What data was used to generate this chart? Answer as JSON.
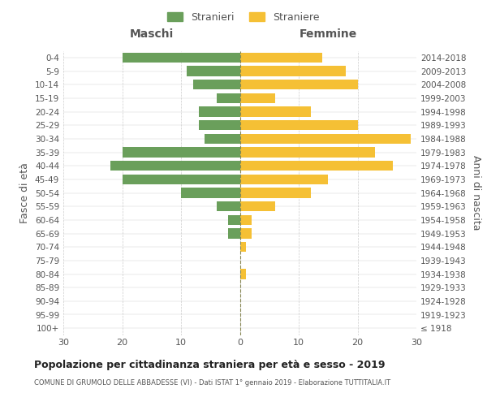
{
  "age_groups": [
    "100+",
    "95-99",
    "90-94",
    "85-89",
    "80-84",
    "75-79",
    "70-74",
    "65-69",
    "60-64",
    "55-59",
    "50-54",
    "45-49",
    "40-44",
    "35-39",
    "30-34",
    "25-29",
    "20-24",
    "15-19",
    "10-14",
    "5-9",
    "0-4"
  ],
  "birth_years": [
    "≤ 1918",
    "1919-1923",
    "1924-1928",
    "1929-1933",
    "1934-1938",
    "1939-1943",
    "1944-1948",
    "1949-1953",
    "1954-1958",
    "1959-1963",
    "1964-1968",
    "1969-1973",
    "1974-1978",
    "1979-1983",
    "1984-1988",
    "1989-1993",
    "1994-1998",
    "1999-2003",
    "2004-2008",
    "2009-2013",
    "2014-2018"
  ],
  "males": [
    0,
    0,
    0,
    0,
    0,
    0,
    0,
    2,
    2,
    4,
    10,
    20,
    22,
    20,
    6,
    7,
    7,
    4,
    8,
    9,
    20
  ],
  "females": [
    0,
    0,
    0,
    0,
    1,
    0,
    1,
    2,
    2,
    6,
    12,
    15,
    26,
    23,
    29,
    20,
    12,
    6,
    20,
    18,
    14
  ],
  "male_color": "#6a9f5b",
  "female_color": "#f5c035",
  "title": "Popolazione per cittadinanza straniera per età e sesso - 2019",
  "subtitle": "COMUNE DI GRUMOLO DELLE ABBADESSE (VI) - Dati ISTAT 1° gennaio 2019 - Elaborazione TUTTITALIA.IT",
  "left_header": "Maschi",
  "right_header": "Femmine",
  "left_ylabel": "Fasce di età",
  "right_ylabel": "Anni di nascita",
  "legend_male": "Stranieri",
  "legend_female": "Straniere",
  "xlim": 30,
  "background_color": "#ffffff",
  "grid_color": "#cccccc",
  "text_color": "#555555",
  "title_color": "#222222"
}
